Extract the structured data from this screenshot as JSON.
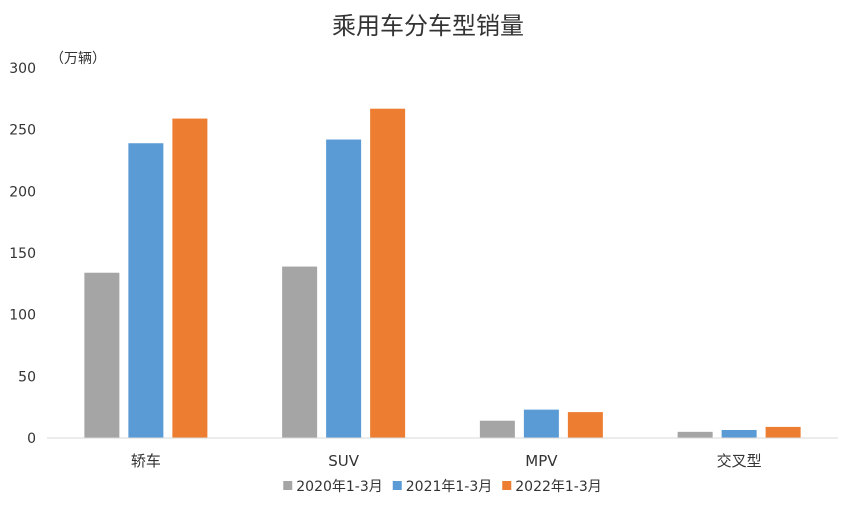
{
  "chart_data": {
    "type": "bar",
    "title": "乘用车分车型销量",
    "unit_label": "（万辆）",
    "categories": [
      "轿车",
      "SUV",
      "MPV",
      "交叉型"
    ],
    "series": [
      {
        "name": "2020年1-3月",
        "color": "#a5a5a5",
        "values": [
          134,
          139,
          14,
          5
        ]
      },
      {
        "name": "2021年1-3月",
        "color": "#5b9bd5",
        "values": [
          239,
          242,
          23,
          6.5
        ]
      },
      {
        "name": "2022年1-3月",
        "color": "#ed7d31",
        "values": [
          259,
          267,
          21,
          9
        ]
      }
    ],
    "ylim": [
      0,
      300
    ],
    "yticks": [
      "0",
      "50",
      "100",
      "150",
      "200",
      "250",
      "300"
    ],
    "grid": false,
    "legend_position": "bottom"
  }
}
